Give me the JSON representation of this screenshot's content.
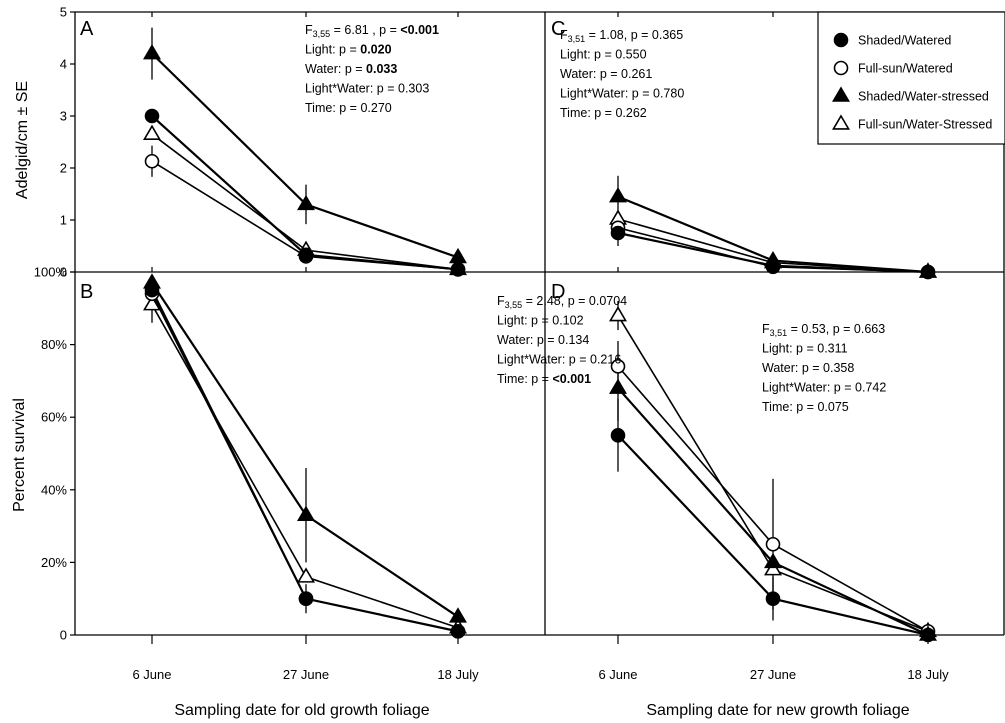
{
  "chart_data": {
    "type": "line",
    "x_categories": [
      "6 June",
      "27 June",
      "18 July"
    ],
    "xlabels": [
      "Sampling date for old growth foliage",
      "Sampling date for new growth foliage"
    ],
    "legend": {
      "placement": "top-right",
      "entries": [
        {
          "key": "sw",
          "label": "Shaded/Watered",
          "marker": "filled-circle"
        },
        {
          "key": "fw",
          "label": "Full-sun/Watered",
          "marker": "open-circle"
        },
        {
          "key": "sws",
          "label": "Shaded/Water-stressed",
          "marker": "filled-triangle"
        },
        {
          "key": "fws",
          "label": "Full-sun/Water-Stressed",
          "marker": "open-triangle"
        }
      ]
    },
    "rows": [
      {
        "ylabel": "Adelgid/cm ± SE",
        "ylim": [
          0,
          5
        ],
        "yticks": [
          "0",
          "1",
          "2",
          "3",
          "4",
          "5"
        ]
      },
      {
        "ylabel": "Percent survival",
        "ylim": [
          0,
          1
        ],
        "yticks": [
          "0",
          "20%",
          "40%",
          "60%",
          "80%",
          "100%"
        ]
      }
    ],
    "panels": [
      {
        "letter": "A",
        "stats": [
          [
            {
              "t": "F"
            },
            {
              "t": "3,55",
              "sub": true
            },
            {
              "t": " = 6.81 , p = "
            },
            {
              "t": "<0.001",
              "b": true
            }
          ],
          [
            {
              "t": "Light: p = "
            },
            {
              "t": "0.020",
              "b": true
            }
          ],
          [
            {
              "t": "Water: p = "
            },
            {
              "t": "0.033",
              "b": true
            }
          ],
          [
            {
              "t": "Light*Water: p = 0.303"
            }
          ],
          [
            {
              "t": "Time: p = 0.270"
            }
          ]
        ],
        "series": [
          {
            "key": "sw",
            "values": [
              3.0,
              0.33,
              0.05
            ],
            "err": [
              0,
              0,
              0
            ]
          },
          {
            "key": "fw",
            "values": [
              2.13,
              0.3,
              0.05
            ],
            "err": [
              0.3,
              0,
              0
            ]
          },
          {
            "key": "sws",
            "values": [
              4.2,
              1.3,
              0.28
            ],
            "err": [
              0.5,
              0.38,
              0
            ]
          },
          {
            "key": "fws",
            "values": [
              2.65,
              0.42,
              0.05
            ],
            "err": [
              0,
              0,
              0
            ]
          }
        ]
      },
      {
        "letter": "C",
        "stats": [
          [
            {
              "t": "F"
            },
            {
              "t": "3,51",
              "sub": true
            },
            {
              "t": " = 1.08, p = 0.365"
            }
          ],
          [
            {
              "t": "Light: p = 0.550"
            }
          ],
          [
            {
              "t": "Water: p = 0.261"
            }
          ],
          [
            {
              "t": "Light*Water: p = 0.780"
            }
          ],
          [
            {
              "t": "Time: p = 0.262"
            }
          ]
        ],
        "series": [
          {
            "key": "sw",
            "values": [
              0.75,
              0.12,
              0.0
            ],
            "err": [
              0.25,
              0,
              0
            ]
          },
          {
            "key": "fw",
            "values": [
              0.85,
              0.1,
              0.0
            ],
            "err": [
              0,
              0,
              0
            ]
          },
          {
            "key": "sws",
            "values": [
              1.45,
              0.22,
              0.0
            ],
            "err": [
              0.4,
              0,
              0
            ]
          },
          {
            "key": "fws",
            "values": [
              1.02,
              0.18,
              0.0
            ],
            "err": [
              0,
              0,
              0
            ]
          }
        ]
      },
      {
        "letter": "B",
        "stats": [
          [
            {
              "t": "F"
            },
            {
              "t": "3,55",
              "sub": true
            },
            {
              "t": " = 2.48, p = 0.0704"
            }
          ],
          [
            {
              "t": "Light: p = 0.102"
            }
          ],
          [
            {
              "t": "Water: p = 0.134"
            }
          ],
          [
            {
              "t": "Light*Water: p = 0.216"
            }
          ],
          [
            {
              "t": "Time: p = "
            },
            {
              "t": "<0.001",
              "b": true
            }
          ]
        ],
        "series": [
          {
            "key": "sw",
            "values": [
              0.95,
              0.1,
              0.01
            ],
            "err": [
              0,
              0,
              0
            ]
          },
          {
            "key": "fw",
            "values": [
              0.94,
              0.1,
              0.01
            ],
            "err": [
              0,
              0.04,
              0
            ]
          },
          {
            "key": "sws",
            "values": [
              0.97,
              0.33,
              0.05
            ],
            "err": [
              0,
              0.13,
              0
            ]
          },
          {
            "key": "fws",
            "values": [
              0.91,
              0.16,
              0.02
            ],
            "err": [
              0.05,
              0,
              0
            ]
          }
        ]
      },
      {
        "letter": "D",
        "stats": [
          [
            {
              "t": "F"
            },
            {
              "t": "3,51",
              "sub": true
            },
            {
              "t": " = 0.53, p = 0.663"
            }
          ],
          [
            {
              "t": "Light: p = 0.311"
            }
          ],
          [
            {
              "t": "Water: p = 0.358"
            }
          ],
          [
            {
              "t": "Light*Water: p = 0.742"
            }
          ],
          [
            {
              "t": "Time: p = 0.075"
            }
          ]
        ],
        "series": [
          {
            "key": "sw",
            "values": [
              0.55,
              0.1,
              0.0
            ],
            "err": [
              0.1,
              0.06,
              0
            ]
          },
          {
            "key": "fw",
            "values": [
              0.74,
              0.25,
              0.01
            ],
            "err": [
              0.07,
              0.18,
              0
            ]
          },
          {
            "key": "sws",
            "values": [
              0.68,
              0.2,
              0.0
            ],
            "err": [
              0.09,
              0,
              0
            ]
          },
          {
            "key": "fws",
            "values": [
              0.88,
              0.18,
              0.01
            ],
            "err": [
              0.04,
              0,
              0
            ]
          }
        ]
      }
    ]
  }
}
